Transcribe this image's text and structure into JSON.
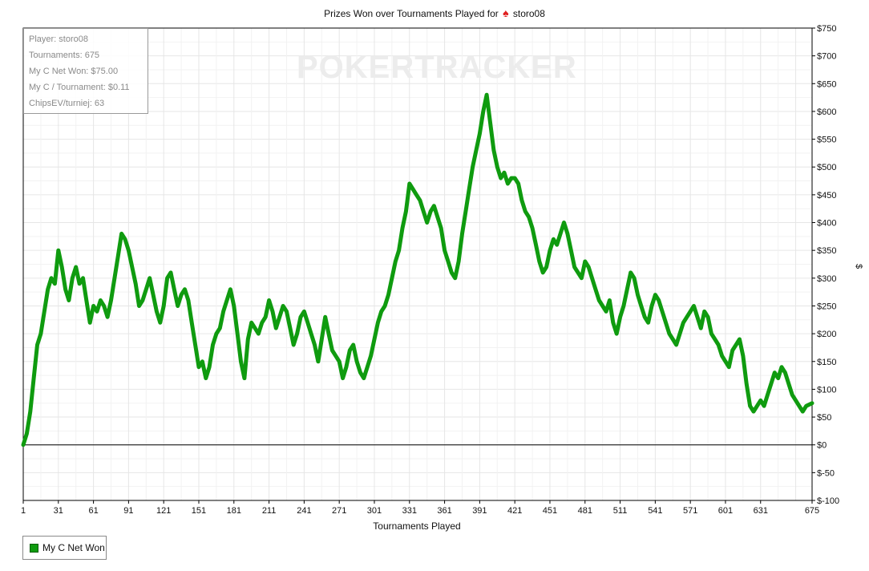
{
  "header": {
    "title_prefix": "Prizes Won over Tournaments Played for",
    "player_name": "storo08"
  },
  "watermark_text": "POKERTRACKER",
  "stats_box": {
    "lines": [
      "Player: storo08",
      "Tournaments: 675",
      "My C Net Won: $75.00",
      "My C / Tournament: $0.11",
      "ChipsEV/turniej: 63"
    ]
  },
  "legend": {
    "label": "My C Net Won",
    "color": "#0f9b0f"
  },
  "chart_data": {
    "type": "line",
    "title": "Prizes Won over Tournaments Played for storo08",
    "xlabel": "Tournaments Played",
    "ylabel": "$",
    "xlim": [
      1,
      675
    ],
    "ylim": [
      -100,
      750
    ],
    "x_ticks": [
      "1",
      "31",
      "61",
      "91",
      "121",
      "151",
      "181",
      "211",
      "241",
      "271",
      "301",
      "331",
      "361",
      "391",
      "421",
      "451",
      "481",
      "511",
      "541",
      "571",
      "601",
      "631",
      "675"
    ],
    "y_ticks": [
      "$-100",
      "$-50",
      "$0",
      "$50",
      "$100",
      "$150",
      "$200",
      "$250",
      "$300",
      "$350",
      "$400",
      "$450",
      "$500",
      "$550",
      "$600",
      "$650",
      "$700",
      "$750"
    ],
    "grid": true,
    "legend_position": "bottom-left",
    "series": [
      {
        "name": "My C Net Won",
        "color": "#0f9b0f",
        "x": [
          1,
          4,
          7,
          10,
          13,
          16,
          19,
          22,
          25,
          28,
          31,
          34,
          37,
          40,
          43,
          46,
          49,
          52,
          55,
          58,
          61,
          64,
          67,
          70,
          73,
          76,
          79,
          82,
          85,
          88,
          91,
          94,
          97,
          100,
          103,
          106,
          109,
          112,
          115,
          118,
          121,
          124,
          127,
          130,
          133,
          136,
          139,
          142,
          145,
          148,
          151,
          154,
          157,
          160,
          163,
          166,
          169,
          172,
          175,
          178,
          181,
          184,
          187,
          190,
          193,
          196,
          199,
          202,
          205,
          208,
          211,
          214,
          217,
          220,
          223,
          226,
          229,
          232,
          235,
          238,
          241,
          244,
          247,
          250,
          253,
          256,
          259,
          262,
          265,
          268,
          271,
          274,
          277,
          280,
          283,
          286,
          289,
          292,
          295,
          298,
          301,
          304,
          307,
          310,
          313,
          316,
          319,
          322,
          325,
          328,
          331,
          334,
          337,
          340,
          343,
          346,
          349,
          352,
          355,
          358,
          361,
          364,
          367,
          370,
          373,
          376,
          379,
          382,
          385,
          388,
          391,
          394,
          397,
          400,
          403,
          406,
          409,
          412,
          415,
          418,
          421,
          424,
          427,
          430,
          433,
          436,
          439,
          442,
          445,
          448,
          451,
          454,
          457,
          460,
          463,
          466,
          469,
          472,
          475,
          478,
          481,
          484,
          487,
          490,
          493,
          496,
          499,
          502,
          505,
          508,
          511,
          514,
          517,
          520,
          523,
          526,
          529,
          532,
          535,
          538,
          541,
          544,
          547,
          550,
          553,
          556,
          559,
          562,
          565,
          568,
          571,
          574,
          577,
          580,
          583,
          586,
          589,
          592,
          595,
          598,
          601,
          604,
          607,
          610,
          613,
          616,
          619,
          622,
          625,
          628,
          631,
          634,
          637,
          640,
          643,
          646,
          649,
          652,
          655,
          658,
          661,
          664,
          667,
          670,
          675
        ],
        "y": [
          0,
          20,
          60,
          120,
          180,
          200,
          240,
          280,
          300,
          290,
          350,
          320,
          280,
          260,
          300,
          320,
          290,
          300,
          260,
          220,
          250,
          240,
          260,
          250,
          230,
          260,
          300,
          340,
          380,
          370,
          350,
          320,
          290,
          250,
          260,
          280,
          300,
          270,
          240,
          220,
          250,
          300,
          310,
          280,
          250,
          270,
          280,
          260,
          220,
          180,
          140,
          150,
          120,
          140,
          180,
          200,
          210,
          240,
          260,
          280,
          250,
          200,
          150,
          120,
          190,
          220,
          210,
          200,
          220,
          230,
          260,
          240,
          210,
          230,
          250,
          240,
          210,
          180,
          200,
          230,
          240,
          220,
          200,
          180,
          150,
          190,
          230,
          200,
          170,
          160,
          150,
          120,
          140,
          170,
          180,
          150,
          130,
          120,
          140,
          160,
          190,
          220,
          240,
          250,
          270,
          300,
          330,
          350,
          390,
          420,
          470,
          460,
          450,
          440,
          420,
          400,
          420,
          430,
          410,
          390,
          350,
          330,
          310,
          300,
          330,
          380,
          420,
          460,
          500,
          530,
          560,
          600,
          630,
          580,
          530,
          500,
          480,
          490,
          470,
          480,
          480,
          470,
          440,
          420,
          410,
          390,
          360,
          330,
          310,
          320,
          350,
          370,
          360,
          380,
          400,
          380,
          350,
          320,
          310,
          300,
          330,
          320,
          300,
          280,
          260,
          250,
          240,
          260,
          220,
          200,
          230,
          250,
          280,
          310,
          300,
          270,
          250,
          230,
          220,
          250,
          270,
          260,
          240,
          220,
          200,
          190,
          180,
          200,
          220,
          230,
          240,
          250,
          230,
          210,
          240,
          230,
          200,
          190,
          180,
          160,
          150,
          140,
          170,
          180,
          190,
          160,
          110,
          70,
          60,
          70,
          80,
          70,
          90,
          110,
          130,
          120,
          140,
          130,
          110,
          90,
          80,
          70,
          60,
          70,
          75
        ]
      }
    ]
  }
}
